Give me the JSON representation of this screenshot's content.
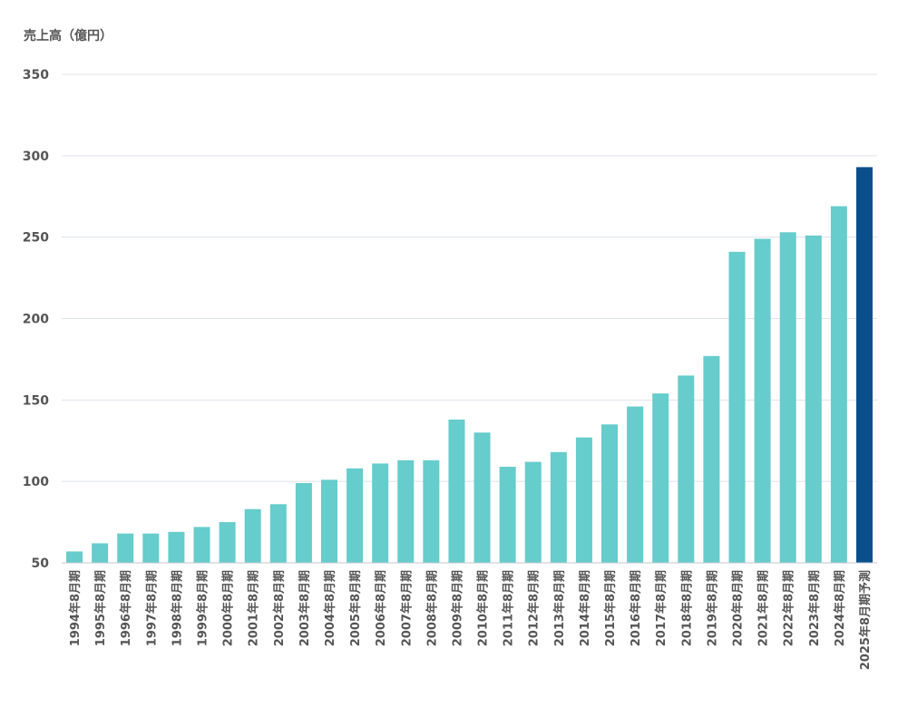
{
  "chart_data": {
    "type": "bar",
    "title": "",
    "ylabel": "売上高（億円）",
    "xlabel": "",
    "ylim": [
      50,
      350
    ],
    "yticks": [
      50,
      100,
      150,
      200,
      250,
      300,
      350
    ],
    "grid": true,
    "categories": [
      "1994年8月期",
      "1995年8月期",
      "1996年8月期",
      "1997年8月期",
      "1998年8月期",
      "1999年8月期",
      "2000年8月期",
      "2001年8月期",
      "2002年8月期",
      "2003年8月期",
      "2004年8月期",
      "2005年8月期",
      "2006年8月期",
      "2007年8月期",
      "2008年8月期",
      "2009年8月期",
      "2010年8月期",
      "2011年8月期",
      "2012年8月期",
      "2013年8月期",
      "2014年8月期",
      "2015年8月期",
      "2016年8月期",
      "2017年8月期",
      "2018年8月期",
      "2019年8月期",
      "2020年8月期",
      "2021年8月期",
      "2022年8月期",
      "2023年8月期",
      "2024年8月期",
      "2025年8月期予測"
    ],
    "values": [
      57,
      62,
      68,
      68,
      69,
      72,
      75,
      83,
      86,
      99,
      101,
      108,
      111,
      113,
      113,
      138,
      130,
      109,
      112,
      118,
      127,
      135,
      146,
      154,
      165,
      177,
      241,
      249,
      253,
      251,
      269,
      293
    ],
    "colors": {
      "actual": "#66cccc",
      "forecast": "#0a4f8c",
      "grid": "#dde3ea",
      "text": "#555555"
    },
    "highlight_index": 31
  }
}
